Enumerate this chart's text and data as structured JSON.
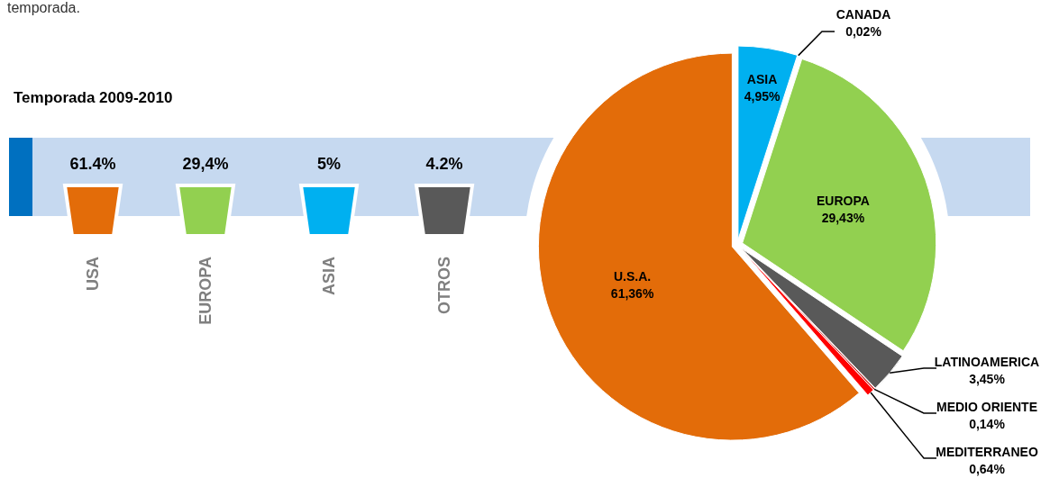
{
  "chart_data": {
    "type": "pie",
    "title": "Temporada 2009-2010",
    "categories": [
      "ASIA",
      "CANADA",
      "EUROPA",
      "LATINOAMERICA",
      "MEDIO ORIENTE",
      "MEDITERRANEO",
      "U.S.A."
    ],
    "values": [
      4.95,
      0.02,
      29.43,
      3.45,
      0.14,
      0.64,
      61.36
    ],
    "value_labels": [
      "4,95%",
      "0,02%",
      "29,43%",
      "3,45%",
      "0,14%",
      "0,64%",
      "61,36%"
    ],
    "colors": [
      "#00b0f0",
      "#4f81bd",
      "#92d050",
      "#595959",
      "#c00000",
      "#ff0000",
      "#e36c09"
    ],
    "annotations": [
      "temporada.",
      "61.4%",
      "USA",
      "29,4%",
      "EUROPA",
      "5%",
      "ASIA",
      "4.2%",
      "OTROS"
    ]
  }
}
